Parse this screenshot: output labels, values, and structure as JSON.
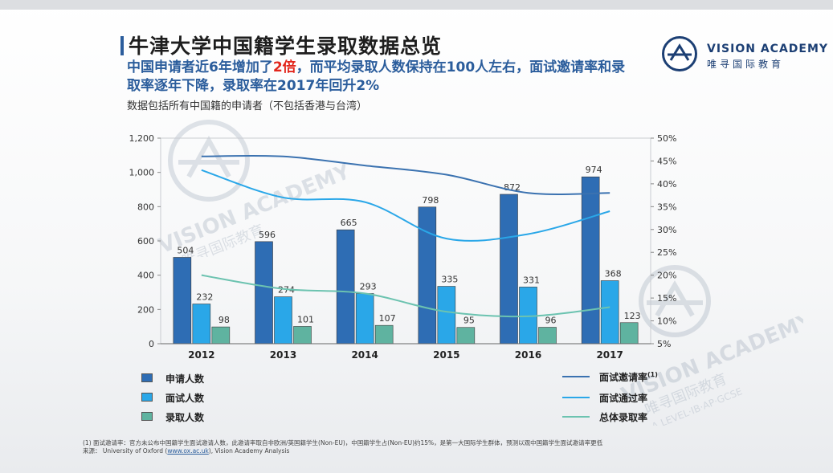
{
  "title": "牛津大学中国籍学生录取数据总览",
  "subtitle": {
    "part1": "中国申请者近6年增加了",
    "highlight": "2倍",
    "part2": "，而平均录取人数保持在100人左右，面试邀请率和录取率逐年下降，录取率在2017年回升2%"
  },
  "note": "数据包括所有中国籍的申请者（不包括香港与台湾）",
  "logo": {
    "en": "VISION ACADEMY",
    "cn": "唯寻国际教育",
    "icon": "vision-academy-logo-icon"
  },
  "watermark": {
    "en": "VISION ACADEMY",
    "cn": "唯寻国际教育",
    "sub": "A LEVEL·IB·AP·GCSE"
  },
  "chart_data": {
    "type": "bar",
    "categories": [
      "2012",
      "2013",
      "2014",
      "2015",
      "2016",
      "2017"
    ],
    "series": [
      {
        "name": "申请人数",
        "kind": "bar",
        "axis": "left",
        "color": "#2e6db4",
        "values": [
          504,
          596,
          665,
          798,
          872,
          974
        ]
      },
      {
        "name": "面试人数",
        "kind": "bar",
        "axis": "left",
        "color": "#2aa7e8",
        "values": [
          232,
          274,
          293,
          335,
          331,
          368
        ]
      },
      {
        "name": "录取人数",
        "kind": "bar",
        "axis": "left",
        "color": "#5fb3a0",
        "values": [
          98,
          101,
          107,
          95,
          96,
          123
        ]
      },
      {
        "name": "面试邀请率",
        "superscript": "(1)",
        "kind": "line",
        "axis": "right",
        "color": "#3b72b0",
        "values": [
          46,
          46,
          44,
          42,
          38,
          38
        ]
      },
      {
        "name": "面试通过率",
        "kind": "line",
        "axis": "right",
        "color": "#2aa7e8",
        "values": [
          43,
          37,
          36,
          28,
          29,
          34
        ]
      },
      {
        "name": "总体录取率",
        "kind": "line",
        "axis": "right",
        "color": "#6cc3b0",
        "values": [
          20,
          17,
          16,
          12,
          11,
          13
        ]
      }
    ],
    "y_left": {
      "min": 0,
      "max": 1200,
      "ticks": [
        "0",
        "200",
        "400",
        "600",
        "800",
        "1,000",
        "1,200"
      ]
    },
    "y_right": {
      "min": 5,
      "max": 50,
      "ticks": [
        "5%",
        "10%",
        "15%",
        "20%",
        "25%",
        "30%",
        "35%",
        "40%",
        "45%",
        "50%"
      ]
    },
    "bar_labels": {
      "申请人数": [
        "504",
        "596",
        "665",
        "798",
        "872",
        "974"
      ],
      "面试人数": [
        "232",
        "274",
        "293",
        "335",
        "331",
        "368"
      ],
      "录取人数": [
        "98",
        "101",
        "107",
        "95",
        "96",
        "123"
      ]
    },
    "grid": false
  },
  "legend": {
    "bars": [
      "申请人数",
      "面试人数",
      "录取人数"
    ],
    "lines": [
      "面试邀请率",
      "面试通过率",
      "总体录取率"
    ],
    "superscript": "(1)"
  },
  "footnote": {
    "line1": "(1) 面试邀请率：官方未公布中国籍学生面试邀请人数，此邀请率取自非欧洲/英国籍学生(Non-EU)，中国籍学生占(Non-EU)约15%，是第一大国际学生群体，预测以观中国籍学生面试邀请率更低",
    "line2_prefix": "来源： University of Oxford (",
    "link": "www.ox.ac.uk",
    "line2_suffix": "), Vision Academy Analysis"
  }
}
